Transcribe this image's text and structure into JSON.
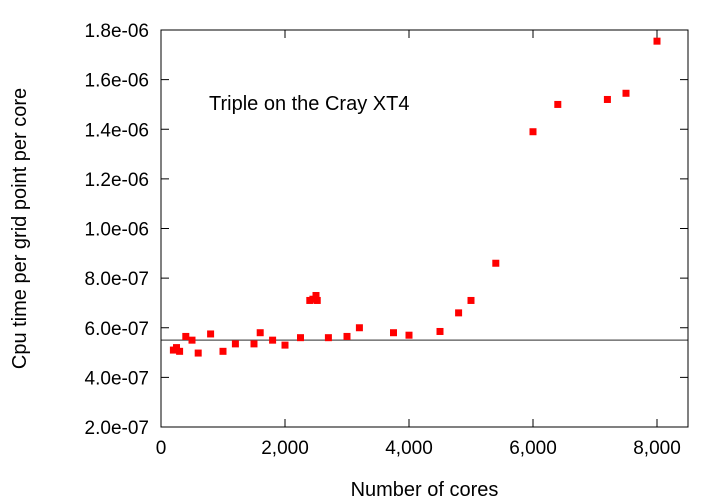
{
  "chart_data": {
    "type": "scatter",
    "title": "",
    "annotation": "Triple on the Cray XT4",
    "xlabel": "Number of cores",
    "ylabel": "Cpu time per grid point per core",
    "xlim": [
      0,
      8500
    ],
    "ylim": [
      2e-07,
      1.8e-06
    ],
    "x_ticks": [
      0,
      2000,
      4000,
      6000,
      8000
    ],
    "x_tick_labels": [
      "0",
      "2,000",
      "4,000",
      "6,000",
      "8,000"
    ],
    "y_ticks": [
      2e-07,
      4e-07,
      6e-07,
      8e-07,
      1e-06,
      1.2e-06,
      1.4e-06,
      1.6e-06,
      1.8e-06
    ],
    "y_tick_labels": [
      "2.0e-07",
      "4.0e-07",
      "6.0e-07",
      "8.0e-07",
      "1.0e-06",
      "1.2e-06",
      "1.4e-06",
      "1.6e-06",
      "1.8e-06"
    ],
    "grid": false,
    "marker_color": "#ff0000",
    "reference_line": {
      "y": 5.5e-07,
      "color": "#555555"
    },
    "series": [
      {
        "points": [
          [
            200,
            5.1e-07
          ],
          [
            250,
            5.2e-07
          ],
          [
            300,
            5.05e-07
          ],
          [
            400,
            5.65e-07
          ],
          [
            500,
            5.5e-07
          ],
          [
            600,
            4.98e-07
          ],
          [
            800,
            5.75e-07
          ],
          [
            1000,
            5.05e-07
          ],
          [
            1200,
            5.35e-07
          ],
          [
            1500,
            5.35e-07
          ],
          [
            1600,
            5.8e-07
          ],
          [
            1800,
            5.5e-07
          ],
          [
            2000,
            5.3e-07
          ],
          [
            2250,
            5.6e-07
          ],
          [
            2400,
            7.1e-07
          ],
          [
            2450,
            7.15e-07
          ],
          [
            2500,
            7.3e-07
          ],
          [
            2520,
            7.1e-07
          ],
          [
            2700,
            5.6e-07
          ],
          [
            3000,
            5.65e-07
          ],
          [
            3200,
            6e-07
          ],
          [
            3750,
            5.8e-07
          ],
          [
            4000,
            5.7e-07
          ],
          [
            4500,
            5.85e-07
          ],
          [
            4800,
            6.6e-07
          ],
          [
            5000,
            7.1e-07
          ],
          [
            5400,
            8.6e-07
          ],
          [
            6000,
            1.39e-06
          ],
          [
            6400,
            1.5e-06
          ],
          [
            7200,
            1.52e-06
          ],
          [
            7500,
            1.545e-06
          ],
          [
            8000,
            1.755e-06
          ]
        ]
      }
    ]
  }
}
